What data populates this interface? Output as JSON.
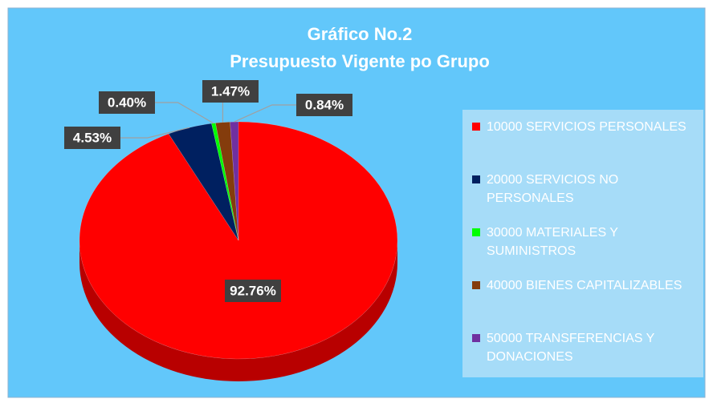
{
  "chart_data": {
    "type": "pie",
    "title": "Gráfico No.2",
    "subtitle": "Presupuesto Vigente po Grupo",
    "categories": [
      "10000 SERVICIOS PERSONALES",
      "20000 SERVICIOS NO PERSONALES",
      "30000 MATERIALES Y SUMINISTROS",
      "40000 BIENES CAPITALIZABLES",
      "50000 TRANSFERENCIAS Y DONACIONES"
    ],
    "values": [
      92.76,
      4.53,
      0.4,
      1.47,
      0.84
    ],
    "value_labels": [
      "92.76%",
      "4.53%",
      "0.40%",
      "1.47%",
      "0.84%"
    ],
    "colors": [
      "#ff0000",
      "#002060",
      "#00ff00",
      "#843c0c",
      "#7030a0"
    ],
    "legend": "right"
  }
}
